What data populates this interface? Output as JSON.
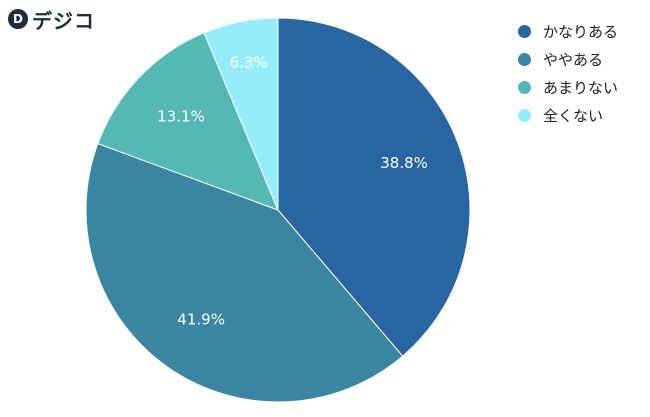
{
  "brand": {
    "logo_mark": "D",
    "logo_text": "デジコ"
  },
  "chart_data": {
    "type": "pie",
    "start_angle_deg": -90,
    "direction": "clockwise",
    "slices": [
      {
        "label": "かなりある",
        "value": 38.8,
        "display": "38.8%",
        "color": "#2a65a3"
      },
      {
        "label": "ややある",
        "value": 41.9,
        "display": "41.9%",
        "color": "#3a85a2"
      },
      {
        "label": "あまりない",
        "value": 13.1,
        "display": "13.1%",
        "color": "#55b8b4"
      },
      {
        "label": "全くない",
        "value": 6.3,
        "display": "6.3%",
        "color": "#96ecfb"
      }
    ],
    "legend_position": "top-right"
  }
}
